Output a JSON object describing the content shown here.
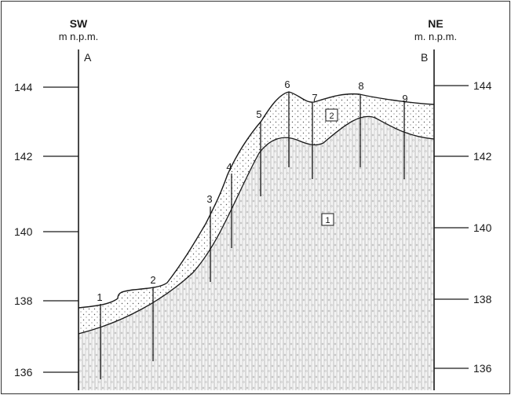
{
  "left_header": {
    "direction": "SW",
    "unit": "m n.p.m.",
    "point": "A"
  },
  "right_header": {
    "direction": "NE",
    "unit": "m. n.p.m.",
    "point": "B"
  },
  "elevation_ticks": [
    "144",
    "142",
    "140",
    "138",
    "136"
  ],
  "boreholes": [
    "1",
    "2",
    "3",
    "4",
    "5",
    "6",
    "7",
    "8",
    "9"
  ],
  "units": [
    "1",
    "2"
  ]
}
